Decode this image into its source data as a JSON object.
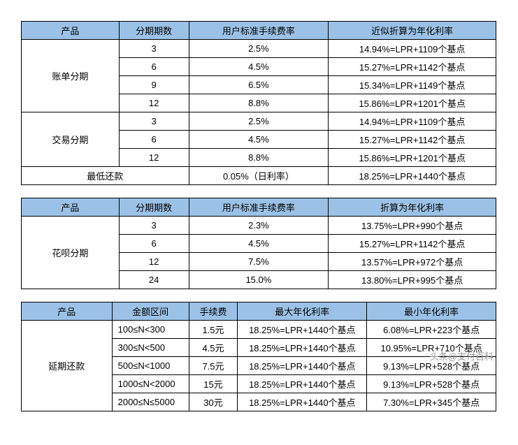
{
  "colors": {
    "header_bg": "#9bc2e6",
    "border": "#000000",
    "text": "#000000",
    "background": "#ffffff"
  },
  "watermark": "头条@支付百科",
  "table1": {
    "headers": {
      "product": "产品",
      "periods": "分期期数",
      "fee": "用户标准手续费率",
      "apr": "近似折算为年化利率"
    },
    "groups": [
      {
        "product": "账单分期",
        "rows": [
          {
            "periods": "3",
            "fee": "2.5%",
            "apr": "14.94%=LPR+1109个基点"
          },
          {
            "periods": "6",
            "fee": "4.5%",
            "apr": "15.27%=LPR+1142个基点"
          },
          {
            "periods": "9",
            "fee": "6.5%",
            "apr": "15.34%=LPR+1149个基点"
          },
          {
            "periods": "12",
            "fee": "8.8%",
            "apr": "15.86%=LPR+1201个基点"
          }
        ]
      },
      {
        "product": "交易分期",
        "rows": [
          {
            "periods": "3",
            "fee": "2.5%",
            "apr": "14.94%=LPR+1109个基点"
          },
          {
            "periods": "6",
            "fee": "4.5%",
            "apr": "15.27%=LPR+1142个基点"
          },
          {
            "periods": "12",
            "fee": "8.8%",
            "apr": "15.86%=LPR+1201个基点"
          }
        ]
      }
    ],
    "footer": {
      "label": "最低还款",
      "fee": "0.05%（日利率）",
      "apr": "18.25%=LPR+1440个基点"
    }
  },
  "table2": {
    "headers": {
      "product": "产品",
      "periods": "分期期数",
      "fee": "用户标准手续费率",
      "apr": "折算为年化利率"
    },
    "product": "花呗分期",
    "rows": [
      {
        "periods": "3",
        "fee": "2.3%",
        "apr": "13.75%=LPR+990个基点"
      },
      {
        "periods": "6",
        "fee": "4.5%",
        "apr": "15.27%=LPR+1142个基点"
      },
      {
        "periods": "12",
        "fee": "7.5%",
        "apr": "13.57%=LPR+972个基点"
      },
      {
        "periods": "24",
        "fee": "15.0%",
        "apr": "13.80%=LPR+995个基点"
      }
    ]
  },
  "table3": {
    "headers": {
      "product": "产品",
      "range": "金额区间",
      "fee": "手续费",
      "max": "最大年化利率",
      "min": "最小年化利率"
    },
    "product": "延期还款",
    "rows": [
      {
        "range": "100≤N<300",
        "fee": "1.5元",
        "max": "18.25%=LPR+1440个基点",
        "min": "6.08%=LPR+223个基点"
      },
      {
        "range": "300≤N<500",
        "fee": "4.5元",
        "max": "18.25%=LPR+1440个基点",
        "min": "10.95%=LPR+710个基点"
      },
      {
        "range": "500≤N<1000",
        "fee": "7.5元",
        "max": "18.25%=LPR+1440个基点",
        "min": "9.13%=LPR+528个基点"
      },
      {
        "range": "1000≤N<2000",
        "fee": "15元",
        "max": "18.25%=LPR+1440个基点",
        "min": "9.13%=LPR+528个基点"
      },
      {
        "range": "2000≤N≤5000",
        "fee": "30元",
        "max": "18.25%=LPR+1440个基点",
        "min": "7.30%=LPR+345个基点"
      }
    ]
  }
}
